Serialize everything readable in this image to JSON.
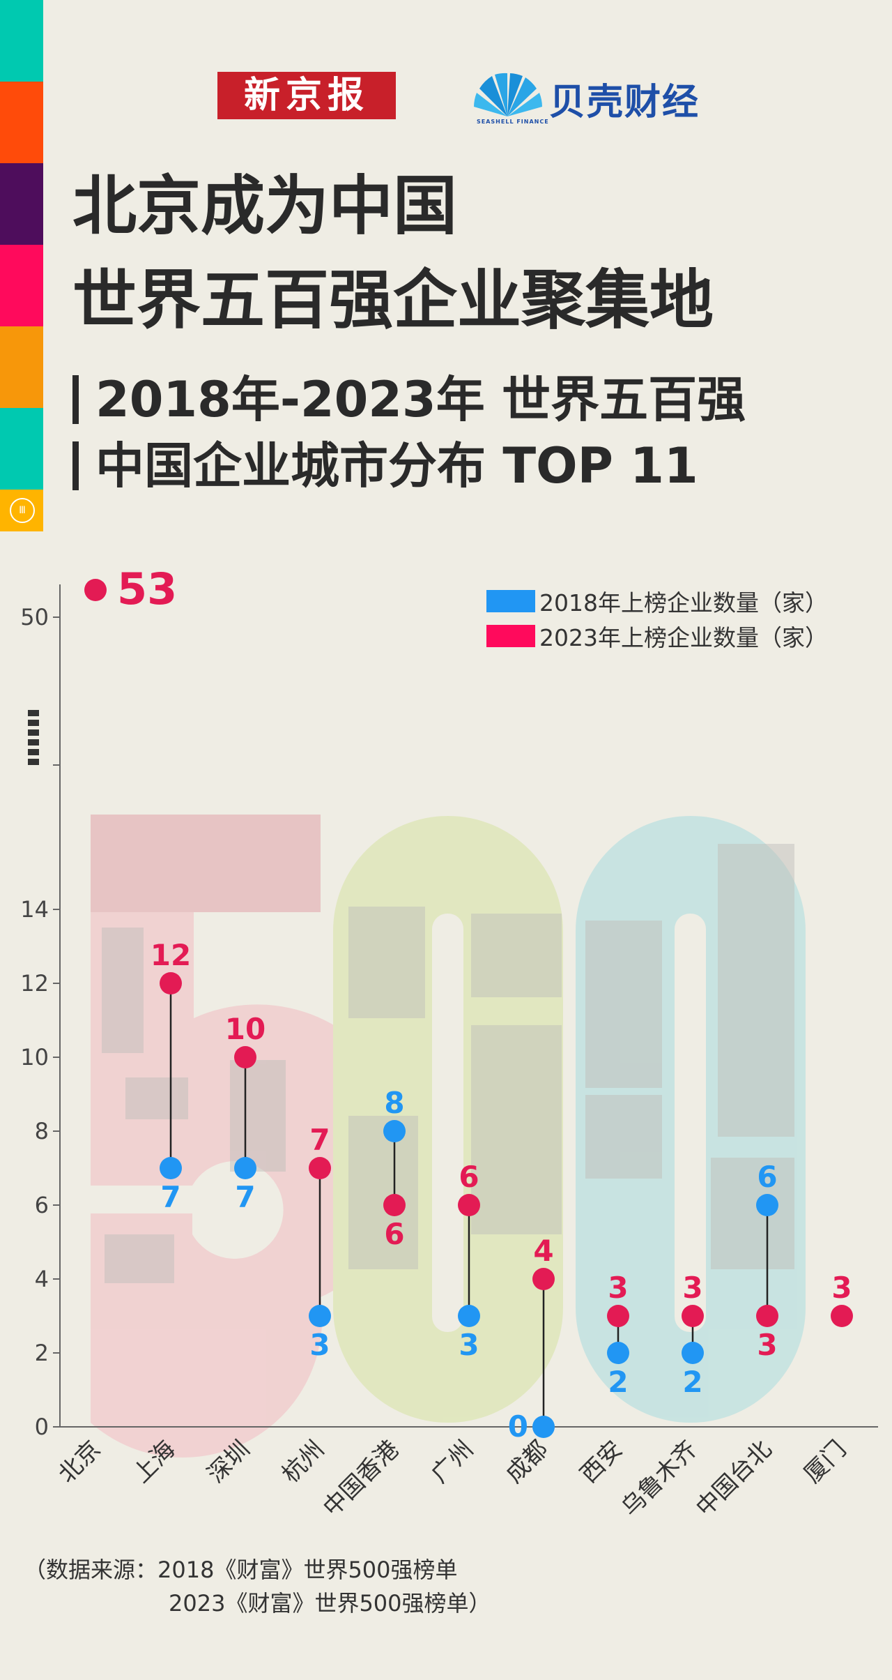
{
  "colors": {
    "stripes": [
      "#00c9b0",
      "#ff4b0a",
      "#4e0d5c",
      "#ff0a5c",
      "#f7970a",
      "#00c9b0",
      "#ffb400"
    ],
    "series2018": "#2196f3",
    "series2023": "#e31b54",
    "background": "#efede4"
  },
  "logos": {
    "xinjingbao": "新京报",
    "beike": "贝壳财经",
    "beike_sub": "SEASHELL FINANCE"
  },
  "title": {
    "line1": "北京成为中国",
    "line2": "世界五百强企业聚集地"
  },
  "subtitle": {
    "line1": "2018年-2023年 世界五百强",
    "line2": "中国企业城市分布 TOP 11"
  },
  "legend": {
    "item2018": "2018年上榜企业数量（家）",
    "item2023": "2023年上榜企业数量（家）"
  },
  "chart_data": {
    "type": "scatter",
    "categories": [
      "北京",
      "上海",
      "深圳",
      "杭州",
      "中国香港",
      "广州",
      "成都",
      "西安",
      "乌鲁木齐",
      "中国台北",
      "厦门"
    ],
    "series": [
      {
        "name": "2018年上榜企业数量（家）",
        "values": [
          null,
          7,
          7,
          3,
          8,
          3,
          0,
          2,
          2,
          6,
          null
        ]
      },
      {
        "name": "2023年上榜企业数量（家）",
        "values": [
          53,
          12,
          10,
          7,
          6,
          6,
          4,
          3,
          3,
          3,
          3
        ]
      }
    ],
    "yticks": [
      "0",
      "2",
      "4",
      "6",
      "8",
      "10",
      "12",
      "14",
      "50"
    ],
    "ylim": [
      0,
      53
    ],
    "axis_break": true,
    "grid": false,
    "legend_position": "top-right"
  },
  "source": {
    "line1": "（数据来源：2018《财富》世界500强榜单",
    "line2": "2023《财富》世界500强榜单）"
  }
}
